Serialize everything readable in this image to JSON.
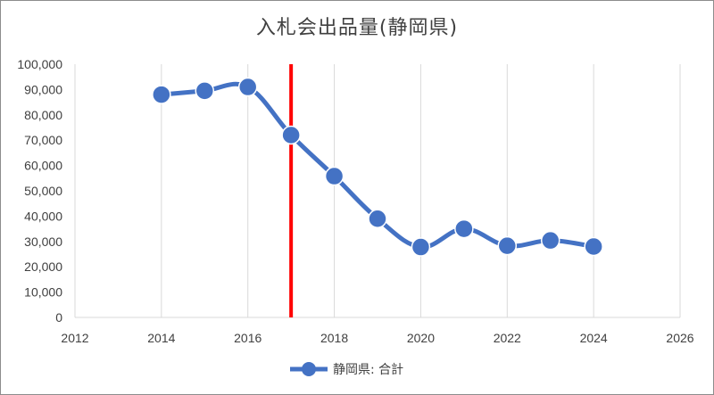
{
  "chart_data": {
    "type": "scatter",
    "title": "入札会出品量(静岡県)",
    "xlabel": "",
    "ylabel": "",
    "xlim": [
      2012,
      2026
    ],
    "ylim": [
      0,
      100000
    ],
    "x_ticks": [
      "2012",
      "2014",
      "2016",
      "2018",
      "2020",
      "2022",
      "2024",
      "2026"
    ],
    "y_ticks": [
      "0",
      "10,000",
      "20,000",
      "30,000",
      "40,000",
      "50,000",
      "60,000",
      "70,000",
      "80,000",
      "90,000",
      "100,000"
    ],
    "grid": "vertical",
    "legend": "bottom",
    "series": [
      {
        "name": "静岡県: 合計",
        "color": "#4472c4",
        "x": [
          2014,
          2015,
          2016,
          2017,
          2018,
          2019,
          2020,
          2021,
          2022,
          2023,
          2024
        ],
        "y": [
          88000,
          89500,
          91000,
          72000,
          55800,
          39000,
          27800,
          35000,
          28300,
          30400,
          28000
        ]
      }
    ],
    "annotations": [
      {
        "type": "vertical-line",
        "x": 2017,
        "color": "#ff0000"
      }
    ]
  }
}
